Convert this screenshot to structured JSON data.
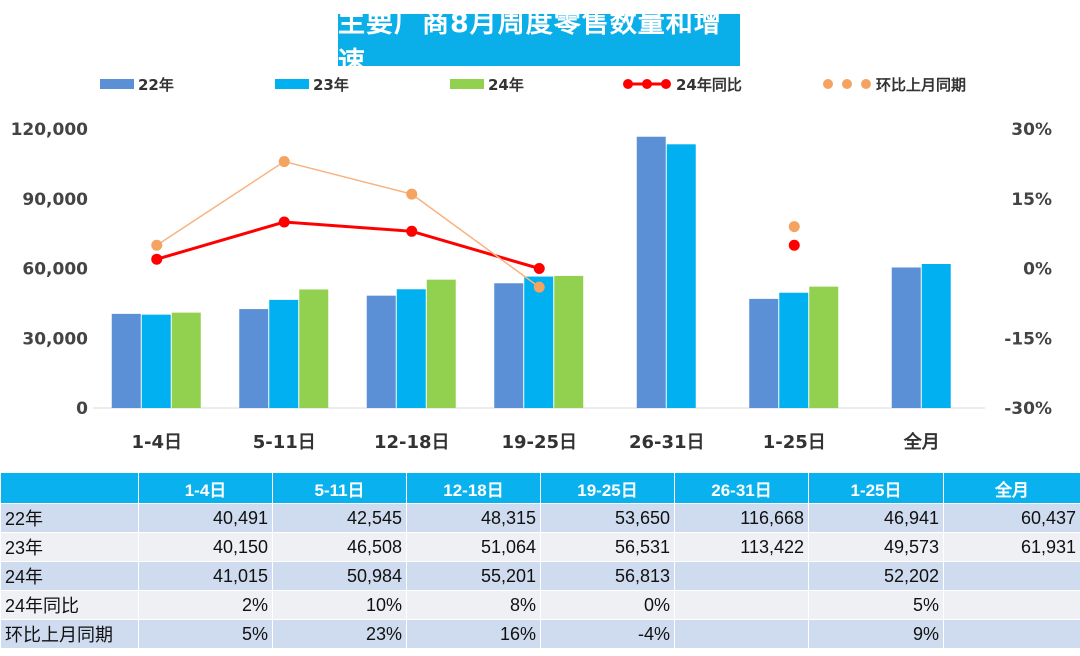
{
  "chart_data": {
    "type": "bar",
    "title": "主要厂商8月周度零售数量和增速",
    "categories": [
      "1-4日",
      "5-11日",
      "12-18日",
      "19-25日",
      "26-31日",
      "1-25日",
      "全月"
    ],
    "series": [
      {
        "name": "22年",
        "type": "bar",
        "axis": "left",
        "color": "#5b8fd6",
        "values": [
          40491,
          42545,
          48315,
          53650,
          116668,
          46941,
          60437
        ]
      },
      {
        "name": "23年",
        "type": "bar",
        "axis": "left",
        "color": "#00b0f0",
        "values": [
          40150,
          46508,
          51064,
          56531,
          113422,
          49573,
          61931
        ]
      },
      {
        "name": "24年",
        "type": "bar",
        "axis": "left",
        "color": "#92d050",
        "values": [
          41015,
          50984,
          55201,
          56813,
          null,
          52202,
          null
        ]
      },
      {
        "name": "24年同比",
        "type": "line",
        "axis": "right",
        "color": "#ff0000",
        "values": [
          2,
          10,
          8,
          0,
          null,
          5,
          null
        ]
      },
      {
        "name": "环比上月同期",
        "type": "line",
        "axis": "right",
        "color": "#f8b380",
        "marker_color": "#f4a460",
        "values": [
          5,
          23,
          16,
          -4,
          null,
          9,
          null
        ]
      }
    ],
    "y_left": {
      "min": 0,
      "max": 120000,
      "ticks": [
        0,
        30000,
        60000,
        90000,
        120000
      ],
      "tick_labels": [
        "0",
        "30,000",
        "60,000",
        "90,000",
        "120,000"
      ]
    },
    "y_right": {
      "min": -30,
      "max": 30,
      "ticks": [
        -30,
        -15,
        0,
        15,
        30
      ],
      "tick_labels": [
        "-30%",
        "-15%",
        "0%",
        "15%",
        "30%"
      ]
    },
    "legend_position": "top",
    "grid": false
  },
  "table": {
    "header": [
      "",
      "1-4日",
      "5-11日",
      "12-18日",
      "19-25日",
      "26-31日",
      "1-25日",
      "全月"
    ],
    "rows": [
      [
        "22年",
        "40,491",
        "42,545",
        "48,315",
        "53,650",
        "116,668",
        "46,941",
        "60,437"
      ],
      [
        "23年",
        "40,150",
        "46,508",
        "51,064",
        "56,531",
        "113,422",
        "49,573",
        "61,931"
      ],
      [
        "24年",
        "41,015",
        "50,984",
        "55,201",
        "56,813",
        "",
        "52,202",
        ""
      ],
      [
        "24年同比",
        "2%",
        "10%",
        "8%",
        "0%",
        "",
        "5%",
        ""
      ],
      [
        "环比上月同期",
        "5%",
        "23%",
        "16%",
        "-4%",
        "",
        "9%",
        ""
      ]
    ]
  }
}
